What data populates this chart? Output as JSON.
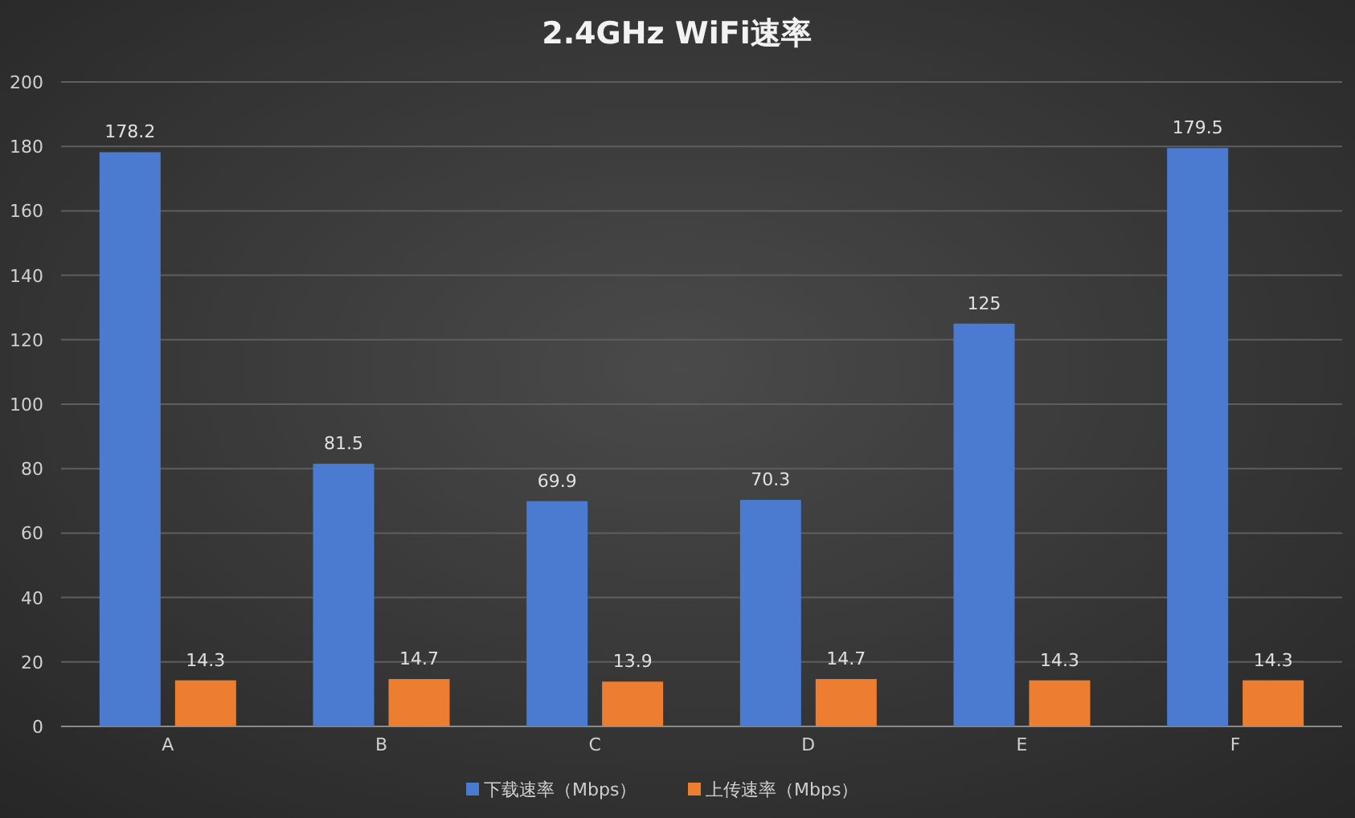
{
  "chart_data": {
    "type": "bar",
    "title": "2.4GHz WiFi速率",
    "categories": [
      "A",
      "B",
      "C",
      "D",
      "E",
      "F"
    ],
    "series": [
      {
        "name": "下载速率（Mbps）",
        "color": "#4a7bd0",
        "values": [
          178.2,
          81.5,
          69.9,
          70.3,
          125,
          179.5
        ]
      },
      {
        "name": "上传速率（Mbps）",
        "color": "#ed7d31",
        "values": [
          14.3,
          14.7,
          13.9,
          14.7,
          14.3,
          14.3
        ]
      }
    ],
    "ylim": [
      0,
      200
    ],
    "yticks": [
      0,
      20,
      40,
      60,
      80,
      100,
      120,
      140,
      160,
      180,
      200
    ],
    "grid": "y",
    "legend": "bottom",
    "data_labels": true
  }
}
